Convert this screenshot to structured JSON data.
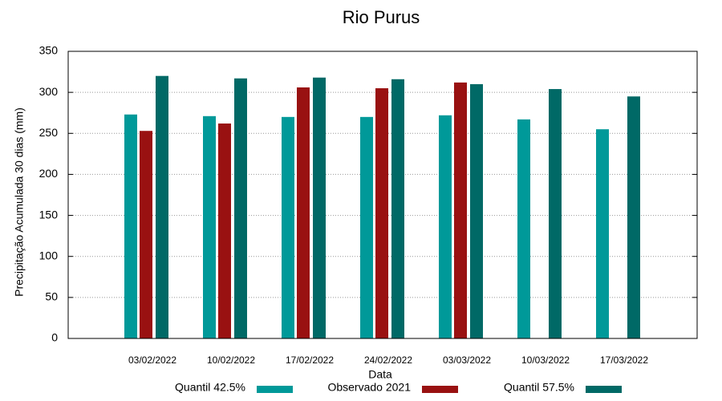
{
  "chart_data": {
    "type": "bar",
    "title": "Rio Purus",
    "x_label": "Data",
    "y_label": "Precipitação Acumulada 30 dias (mm)",
    "categories": [
      "03/02/2022",
      "10/02/2022",
      "17/02/2022",
      "24/02/2022",
      "03/03/2022",
      "10/03/2022",
      "17/03/2022"
    ],
    "series": [
      {
        "name": "Quantil 42.5%",
        "color": "#009999",
        "values": [
          273,
          271,
          270,
          270,
          272,
          267,
          255
        ]
      },
      {
        "name": "Observado 2021",
        "color": "#991111",
        "values": [
          253,
          262,
          306,
          305,
          312,
          null,
          null
        ]
      },
      {
        "name": "Quantil 57.5%",
        "color": "#006966",
        "values": [
          320,
          317,
          318,
          316,
          310,
          304,
          295
        ]
      }
    ],
    "ylim": [
      0,
      350
    ],
    "yticks": [
      0,
      50,
      100,
      150,
      200,
      250,
      300,
      350
    ],
    "grid": true,
    "legend": "bottom"
  }
}
